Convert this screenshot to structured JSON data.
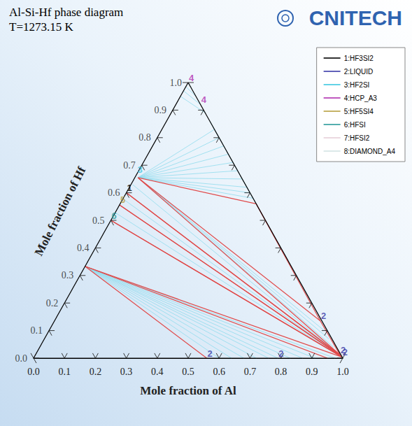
{
  "chart_data": {
    "type": "ternary",
    "title": "Al-Si-Hf phase diagram",
    "subtitle": "T=1273.15 K",
    "logo": "CNITECH",
    "x_label": "Mole fraction of Al",
    "y_label": "Mole fraction of Hf",
    "xlim": [
      0,
      1
    ],
    "ylim": [
      0,
      1
    ],
    "xticks": [
      {
        "value": 0,
        "label": "0.0"
      },
      0.1,
      0.2,
      0.3,
      0.4,
      0.5,
      0.6,
      0.7,
      0.8,
      0.9,
      {
        "value": 1,
        "label": "1.0"
      }
    ],
    "yticks": [
      {
        "value": 0,
        "label": "0.0"
      },
      0.1,
      0.2,
      0.3,
      0.4,
      0.5,
      0.6,
      0.7,
      0.8,
      0.9,
      {
        "value": 1,
        "label": "1.0"
      }
    ],
    "legend": "top-right",
    "series": [
      {
        "name": "1:HF3SI2",
        "color": "#000000",
        "label": "1",
        "points": [
          [
            0,
            0.6
          ]
        ]
      },
      {
        "name": "2:LIQUID",
        "color": "#3a3aa8",
        "label": "2",
        "points": [
          [
            0.56,
            0
          ],
          [
            0.79,
            0
          ],
          [
            0.86,
            0.135
          ],
          [
            0.985,
            0.012
          ],
          [
            0.995,
            0.004
          ]
        ]
      },
      {
        "name": "3:HF2SI",
        "color": "#3cc8e0",
        "label": "3",
        "points": [
          [
            0,
            0.667
          ]
        ]
      },
      {
        "name": "4:HCP_A3",
        "color": "#b030b0",
        "label": "4",
        "points": [
          [
            0,
            1.0
          ],
          [
            0.08,
            0.92
          ]
        ]
      },
      {
        "name": "5:HF5SI4",
        "color": "#b8a040",
        "label": "5",
        "points": [
          [
            0,
            0.556
          ]
        ]
      },
      {
        "name": "6:HFSI",
        "color": "#2a9a9a",
        "label": "6",
        "points": [
          [
            0,
            0.5
          ]
        ]
      },
      {
        "name": "7:HFSI2",
        "color": "#e6cfd8",
        "points": []
      },
      {
        "name": "8:DIAMOND_A4",
        "color": "#d2e4e4",
        "points": []
      }
    ],
    "tie_lines": {
      "color": "#8fdcee",
      "segments": [
        [
          [
            0.93,
            0.07
          ],
          [
            0.14,
            0.86
          ]
        ],
        [
          [
            0,
            0.95
          ],
          [
            0.11,
            0.89
          ]
        ],
        [
          [
            0,
            0.97
          ],
          [
            0.08,
            0.92
          ]
        ],
        [
          [
            0,
            0.985
          ],
          [
            0.05,
            0.95
          ]
        ],
        [
          [
            0,
            1.0
          ],
          [
            0.02,
            0.98
          ]
        ],
        [
          [
            0.01,
            0.655
          ],
          [
            0.42,
            0.58
          ]
        ],
        [
          [
            0.01,
            0.655
          ],
          [
            0.4,
            0.6
          ]
        ],
        [
          [
            0.01,
            0.655
          ],
          [
            0.38,
            0.62
          ]
        ],
        [
          [
            0.01,
            0.655
          ],
          [
            0.35,
            0.65
          ]
        ],
        [
          [
            0.01,
            0.655
          ],
          [
            0.32,
            0.68
          ]
        ],
        [
          [
            0.01,
            0.655
          ],
          [
            0.29,
            0.71
          ]
        ],
        [
          [
            0.01,
            0.655
          ],
          [
            0.26,
            0.74
          ]
        ],
        [
          [
            0.01,
            0.655
          ],
          [
            0.23,
            0.77
          ]
        ],
        [
          [
            0.01,
            0.655
          ],
          [
            0.2,
            0.8
          ]
        ],
        [
          [
            0.01,
            0.655
          ],
          [
            0.17,
            0.83
          ]
        ],
        [
          [
            0.01,
            0.655
          ],
          [
            0.89,
            0.1
          ]
        ],
        [
          [
            0.01,
            0.655
          ],
          [
            0.92,
            0.07
          ]
        ],
        [
          [
            0.01,
            0.655
          ],
          [
            0.95,
            0.04
          ]
        ],
        [
          [
            0.005,
            0.63
          ],
          [
            0.986,
            0.011
          ]
        ],
        [
          [
            0,
            0.578
          ],
          [
            0.99,
            0.007
          ]
        ],
        [
          [
            0,
            0.528
          ],
          [
            0.992,
            0.005
          ]
        ],
        [
          [
            0,
            0.333
          ],
          [
            0.975,
            0
          ]
        ],
        [
          [
            0,
            0.333
          ],
          [
            0.6,
            0
          ]
        ],
        [
          [
            0,
            0.333
          ],
          [
            0.64,
            0
          ]
        ],
        [
          [
            0,
            0.333
          ],
          [
            0.68,
            0
          ]
        ],
        [
          [
            0,
            0.333
          ],
          [
            0.72,
            0
          ]
        ],
        [
          [
            0,
            0.333
          ],
          [
            0.76,
            0
          ]
        ],
        [
          [
            0,
            0.333
          ],
          [
            0.79,
            0
          ]
        ],
        [
          [
            0,
            0.333
          ],
          [
            0.83,
            0
          ]
        ],
        [
          [
            0,
            0.333
          ],
          [
            0.87,
            0
          ]
        ],
        [
          [
            0,
            0.333
          ],
          [
            0.91,
            0
          ]
        ]
      ]
    },
    "phase_boundaries": {
      "color": "#e04a4a",
      "segments": [
        [
          [
            0.01,
            0.655
          ],
          [
            0.44,
            0.56
          ]
        ],
        [
          [
            0.44,
            0.56
          ],
          [
            0.86,
            0.135
          ]
        ],
        [
          [
            0.01,
            0.655
          ],
          [
            0.86,
            0.135
          ]
        ],
        [
          [
            0.86,
            0.135
          ],
          [
            0.985,
            0.012
          ]
        ],
        [
          [
            0.01,
            0.655
          ],
          [
            0.985,
            0.012
          ]
        ],
        [
          [
            0,
            0.6
          ],
          [
            0.985,
            0.012
          ]
        ],
        [
          [
            0,
            0.6
          ],
          [
            0.99,
            0.008
          ]
        ],
        [
          [
            0,
            0.556
          ],
          [
            0.99,
            0.008
          ]
        ],
        [
          [
            0,
            0.556
          ],
          [
            0.992,
            0.006
          ]
        ],
        [
          [
            0,
            0.5
          ],
          [
            0.992,
            0.006
          ]
        ],
        [
          [
            0,
            0.5
          ],
          [
            0.995,
            0.004
          ]
        ],
        [
          [
            0,
            0.333
          ],
          [
            0.995,
            0.004
          ]
        ],
        [
          [
            0,
            0.333
          ],
          [
            0.95,
            0
          ]
        ],
        [
          [
            0,
            0.333
          ],
          [
            0.56,
            0
          ]
        ]
      ]
    }
  }
}
